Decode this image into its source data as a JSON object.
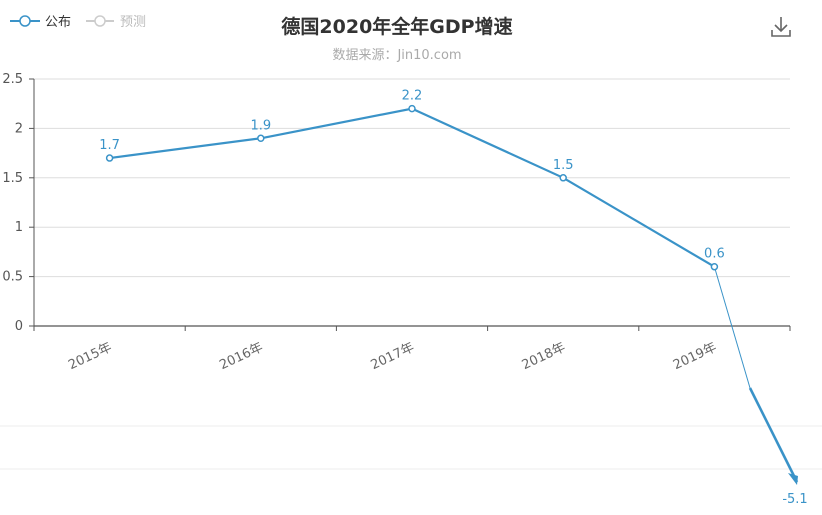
{
  "legend": {
    "items": [
      {
        "label": "公布",
        "color": "#3a93c8"
      },
      {
        "label": "预测",
        "color": "#cccccc"
      }
    ]
  },
  "toolbar": {
    "download_icon": "download-icon"
  },
  "chart_data": {
    "type": "line",
    "title": "德国2020年全年GDP增速",
    "subtitle": "数据来源：Jin10.com",
    "categories": [
      "2015年",
      "2016年",
      "2017年",
      "2018年",
      "2019年"
    ],
    "series": [
      {
        "name": "公布",
        "values": [
          1.7,
          1.9,
          2.2,
          1.5,
          0.6
        ],
        "color": "#3a93c8"
      }
    ],
    "forecast": {
      "value": -5.1,
      "label": "-5.1",
      "color": "#3a93c8"
    },
    "yticks": [
      "0",
      "0.5",
      "1",
      "1.5",
      "2",
      "2.5"
    ],
    "ylim": [
      0,
      2.5
    ],
    "grid": true,
    "legend_position": "top-left"
  }
}
